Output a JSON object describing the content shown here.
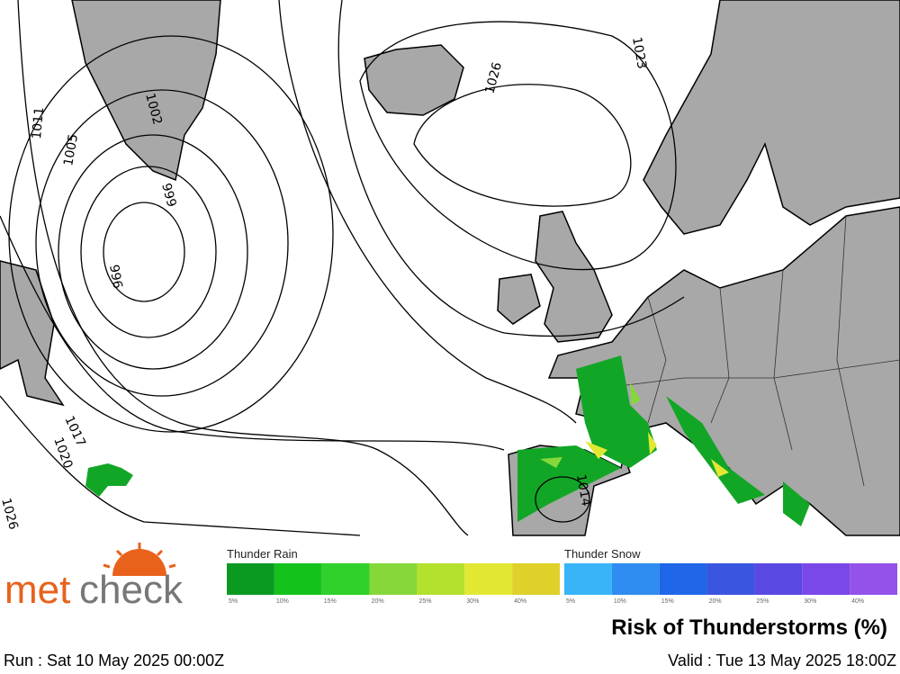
{
  "logo": {
    "part1": "met",
    "part2": "check"
  },
  "legend": {
    "rain": {
      "title": "Thunder Rain",
      "labels": [
        "5%",
        "10%",
        "15%",
        "20%",
        "25%",
        "30%",
        "40%"
      ],
      "colors": [
        "#0a9a22",
        "#14c21e",
        "#2fd12a",
        "#86d83a",
        "#b4e02e",
        "#e2e832",
        "#dfd02a"
      ]
    },
    "snow": {
      "title": "Thunder Snow",
      "labels": [
        "5%",
        "10%",
        "15%",
        "20%",
        "25%",
        "30%",
        "40%"
      ],
      "colors": [
        "#38b4f8",
        "#2f8cf0",
        "#1f66e8",
        "#3a55e0",
        "#5a48e2",
        "#7a48e8",
        "#9452ea"
      ]
    }
  },
  "title": "Risk of Thunderstorms (%)",
  "run": "Run : Sat 10 May 2025 00:00Z",
  "valid": "Valid : Tue 13 May 2025 18:00Z",
  "isobar_labels": [
    "1011",
    "1005",
    "1002",
    "999",
    "996",
    "1017",
    "1020",
    "1026",
    "1026",
    "1023",
    "1014"
  ]
}
